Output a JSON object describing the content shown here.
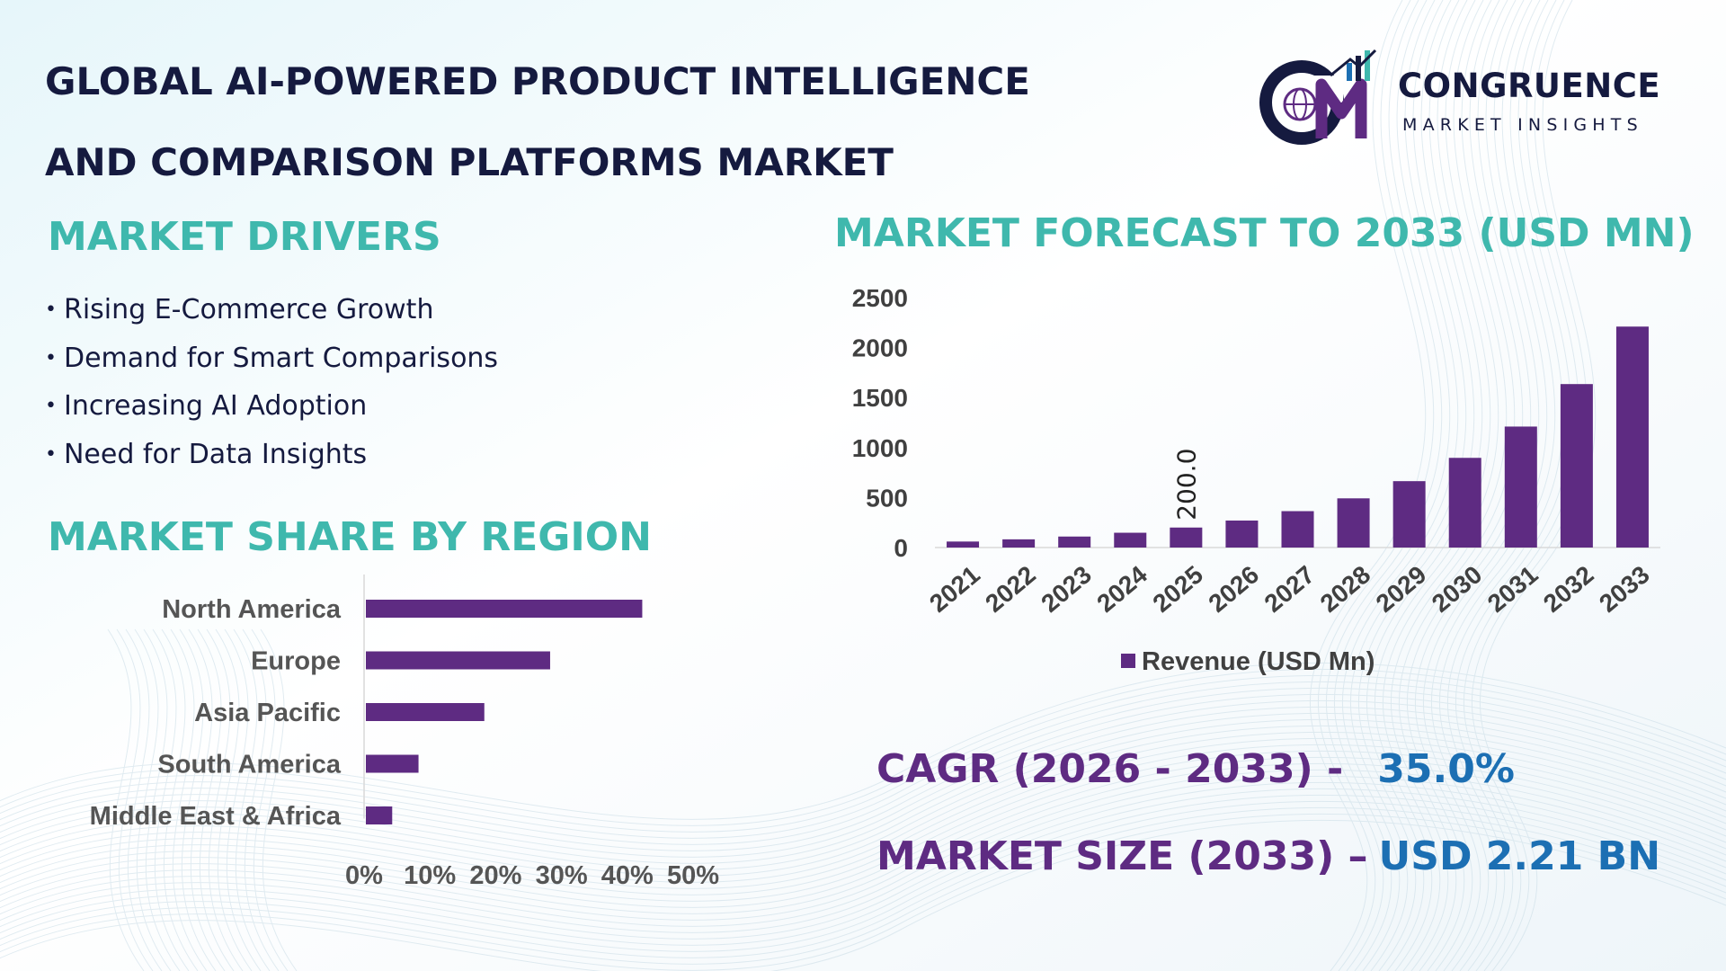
{
  "title": {
    "line1": "GLOBAL AI-POWERED PRODUCT INTELLIGENCE",
    "line2": "AND COMPARISON PLATFORMS MARKET"
  },
  "logo": {
    "name": "CONGRUENCE",
    "tagline": "MARKET INSIGHTS",
    "icon": "cm-globe-chart-logo-icon"
  },
  "drivers": {
    "heading": "MARKET DRIVERS",
    "items": [
      "Rising E-Commerce Growth",
      "Demand for Smart Comparisons",
      "Increasing AI Adoption",
      "Need for Data Insights"
    ]
  },
  "region": {
    "heading": "MARKET SHARE BY REGION"
  },
  "forecast": {
    "heading": "MARKET FORECAST TO 2033 (USD MN)"
  },
  "kpis": {
    "cagr_label": "CAGR (2026 - 2033) -",
    "cagr_value": "35.0%",
    "size_label": "MARKET SIZE (2033) –",
    "size_value": "USD 2.21 BN"
  },
  "colors": {
    "title": "#151a3f",
    "heading": "#3fb8ad",
    "bar": "#5e2b82",
    "kpi_label": "#5e2b82",
    "kpi_value": "#1c6fb3",
    "axis_text": "#404040"
  },
  "chart_data": [
    {
      "type": "bar",
      "title": "MARKET FORECAST TO 2033 (USD MN)",
      "categories": [
        "2021",
        "2022",
        "2023",
        "2024",
        "2025",
        "2026",
        "2027",
        "2028",
        "2029",
        "2030",
        "2031",
        "2032",
        "2033"
      ],
      "series": [
        {
          "name": "Revenue (USD Mn)",
          "values": [
            60,
            82,
            110,
            148,
            200,
            270,
            364,
            492,
            664,
            897,
            1210,
            1635,
            2210
          ]
        }
      ],
      "data_labels": [
        {
          "category": "2025",
          "text": "200.0"
        }
      ],
      "ylim": [
        0,
        2500
      ],
      "yticks": [
        "0",
        "500",
        "1000",
        "1500",
        "2000",
        "2500"
      ],
      "grid": false,
      "legend": "bottom"
    },
    {
      "type": "bar",
      "orientation": "horizontal",
      "title": "MARKET SHARE BY REGION",
      "categories": [
        "North America",
        "Europe",
        "Asia Pacific",
        "South America",
        "Middle East & Africa"
      ],
      "values": [
        42,
        28,
        18,
        8,
        4
      ],
      "xlim": [
        0,
        50
      ],
      "xticks": [
        "0%",
        "10%",
        "20%",
        "30%",
        "40%",
        "50%"
      ],
      "grid": false,
      "legend": "none"
    }
  ]
}
